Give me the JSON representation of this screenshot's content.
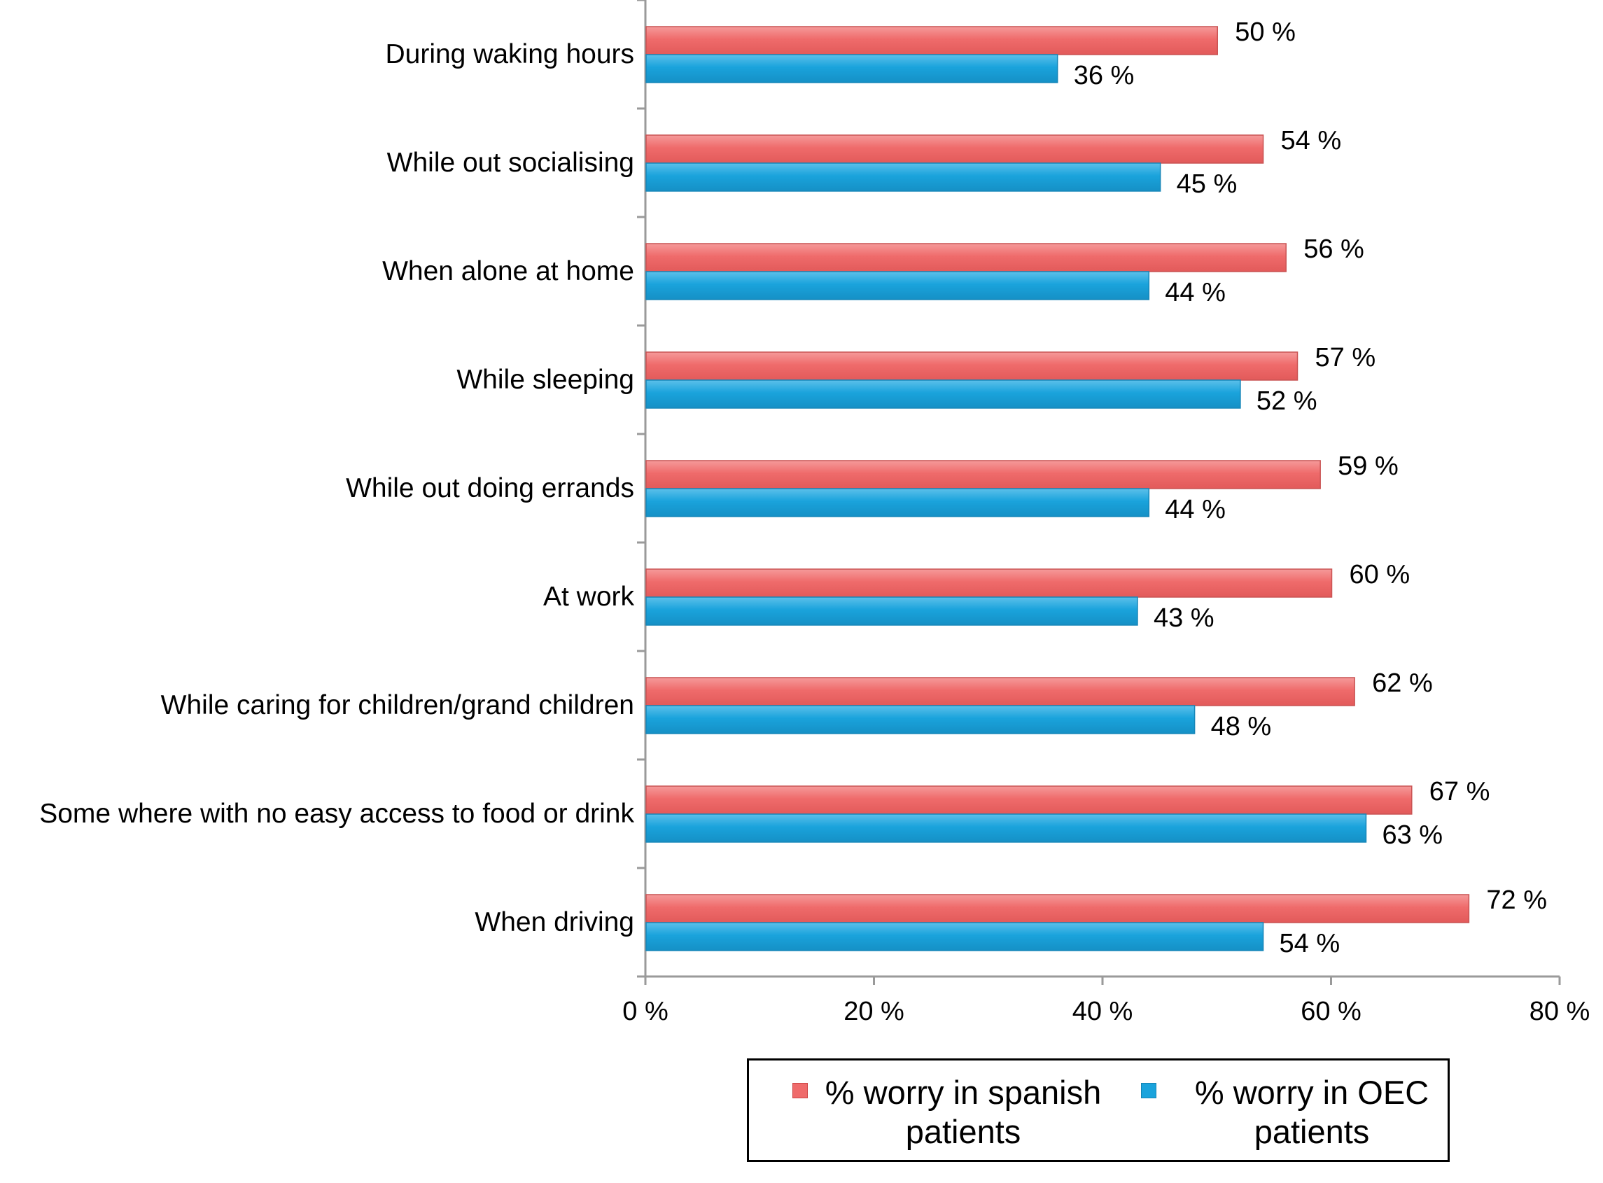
{
  "chart_data": {
    "type": "bar",
    "orientation": "horizontal",
    "categories": [
      "During waking hours",
      "While out socialising",
      "When alone at home",
      "While sleeping",
      "While out doing errands",
      "At work",
      "While caring for children/grand children",
      "Some where with no easy access to food or drink",
      "When driving"
    ],
    "series": [
      {
        "name": "% worry in spanish patients",
        "color": "#ef6b6b",
        "values": [
          50,
          54,
          56,
          57,
          59,
          60,
          62,
          67,
          72
        ],
        "labels": [
          "50 %",
          "54 %",
          "56 %",
          "57 %",
          "59 %",
          "60 %",
          "62 %",
          "67 %",
          "72 %"
        ]
      },
      {
        "name": "% worry in OEC patients",
        "color": "#1aa3dc",
        "values": [
          36,
          45,
          44,
          52,
          44,
          43,
          48,
          63,
          54
        ],
        "labels": [
          "36 %",
          "45 %",
          "44 %",
          "52 %",
          "44 %",
          "43 %",
          "48 %",
          "63 %",
          "54 %"
        ]
      }
    ],
    "xlim": [
      0,
      80
    ],
    "xticks": [
      0,
      20,
      40,
      60,
      80
    ],
    "xtick_labels": [
      "0 %",
      "20 %",
      "40 %",
      "60 %",
      "80 %"
    ],
    "title": "",
    "xlabel": "",
    "ylabel": "",
    "grid": false,
    "legend_position": "bottom"
  }
}
